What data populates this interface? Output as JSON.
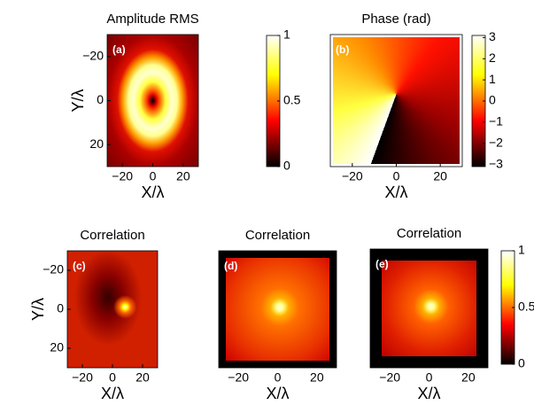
{
  "chart_data": [
    {
      "type": "heatmap",
      "title": "Amplitude RMS",
      "panel_label": "(a)",
      "xlabel": "X/λ",
      "ylabel": "Y/λ",
      "xlim": [
        -30,
        30
      ],
      "ylim": [
        30,
        -30
      ],
      "xticks": [
        {
          "value": -20,
          "label": "−20"
        },
        0,
        20
      ],
      "yticks": [
        {
          "value": -20,
          "label": "−20"
        },
        0,
        20
      ],
      "colorbar": {
        "lim": [
          0,
          1
        ],
        "ticks": [
          0,
          0.5,
          1
        ]
      }
    },
    {
      "type": "heatmap",
      "title": "Phase (rad)",
      "panel_label": "(b)",
      "xlabel": "X/λ",
      "xlim": [
        -30,
        30
      ],
      "ylim": [
        30,
        -30
      ],
      "xticks": [
        {
          "value": -20,
          "label": "−20"
        },
        0,
        20
      ],
      "colorbar": {
        "lim": [
          -3.1,
          3.1
        ],
        "ticks": [
          {
            "value": -3,
            "label": "−3"
          },
          {
            "value": -2,
            "label": "−2"
          },
          {
            "value": -1,
            "label": "−1"
          },
          0,
          1,
          2,
          3
        ]
      }
    },
    {
      "type": "heatmap",
      "title": "Correlation",
      "panel_label": "(c)",
      "xlabel": "X/λ",
      "ylabel": "Y/λ",
      "xlim": [
        -30,
        30
      ],
      "ylim": [
        30,
        -30
      ],
      "xticks": [
        {
          "value": -20,
          "label": "−20"
        },
        0,
        20
      ],
      "yticks": [
        {
          "value": -20,
          "label": "−20"
        },
        0,
        20
      ]
    },
    {
      "type": "heatmap",
      "title": "Correlation",
      "panel_label": "(d)",
      "xlabel": "X/λ",
      "xlim": [
        -30,
        30
      ],
      "ylim": [
        30,
        -30
      ],
      "xticks": [
        {
          "value": -20,
          "label": "−20"
        },
        0,
        20
      ]
    },
    {
      "type": "heatmap",
      "title": "Correlation",
      "panel_label": "(e)",
      "xlabel": "X/λ",
      "xlim": [
        -30,
        30
      ],
      "ylim": [
        30,
        -30
      ],
      "xticks": [
        {
          "value": -20,
          "label": "−20"
        },
        0,
        20
      ],
      "colorbar": {
        "lim": [
          0,
          1
        ],
        "ticks": [
          0,
          0.5,
          1
        ]
      }
    }
  ]
}
